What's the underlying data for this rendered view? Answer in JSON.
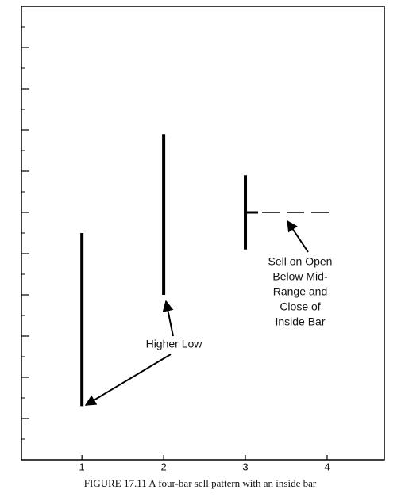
{
  "chart_data": {
    "type": "hlc",
    "caption": "FIGURE 17.11 A four-bar sell pattern with an inside bar",
    "categories": [
      "1",
      "2",
      "3",
      "4"
    ],
    "x": [
      1,
      2,
      3,
      4
    ],
    "high": [
      5.5,
      7.9,
      6.9,
      null
    ],
    "low": [
      1.3,
      4.0,
      5.1,
      null
    ],
    "close": [
      null,
      null,
      6.0,
      null
    ],
    "color": "#000000",
    "xlim": [
      0.26,
      4.7
    ],
    "xticks": [
      1,
      2,
      3,
      4
    ],
    "ylim": [
      0,
      11
    ],
    "yticks": [
      1,
      2,
      3,
      4,
      5,
      6,
      7,
      8,
      9,
      10
    ],
    "yminorticks": [
      0.5,
      1.5,
      2.5,
      3.5,
      4.5,
      5.5,
      6.5,
      7.5,
      8.5,
      9.5,
      10.5
    ],
    "annotations": {
      "higher_low": "Higher Low",
      "sell": [
        "Sell on Open",
        "Below Mid-",
        "Range and",
        "Close of",
        "Inside Bar"
      ]
    }
  }
}
